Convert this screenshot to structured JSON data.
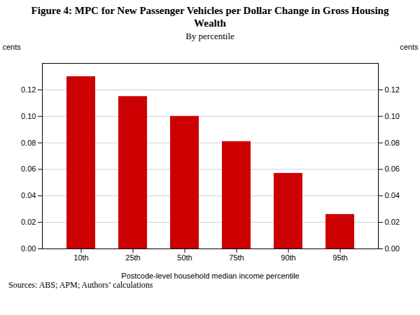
{
  "chart_data": {
    "type": "bar",
    "title": "Figure 4: MPC for New Passenger Vehicles per Dollar Change in Gross Housing Wealth",
    "subtitle": "By percentile",
    "categories": [
      "10th",
      "25th",
      "50th",
      "75th",
      "90th",
      "95th"
    ],
    "values": [
      0.13,
      0.115,
      0.1,
      0.081,
      0.057,
      0.026
    ],
    "color": "#cc0000",
    "xlabel": "Postcode-level household median income percentile",
    "ylabel": "cents",
    "y2label": "cents",
    "ylim": [
      0.0,
      0.14
    ],
    "yticks": [
      {
        "value": 0.0,
        "label": "0.00"
      },
      0.02,
      0.04,
      0.06,
      0.08,
      {
        "value": 0.1,
        "label": "0.10"
      },
      0.12
    ],
    "y2lim": [
      0.0,
      0.14
    ],
    "y2ticks": [
      {
        "value": 0.0,
        "label": "0.00"
      },
      0.02,
      0.04,
      0.06,
      0.08,
      {
        "value": 0.1,
        "label": "0.10"
      },
      0.12
    ],
    "grid": true,
    "source": "Sources:  ABS; APM; Authors’ calculations"
  }
}
